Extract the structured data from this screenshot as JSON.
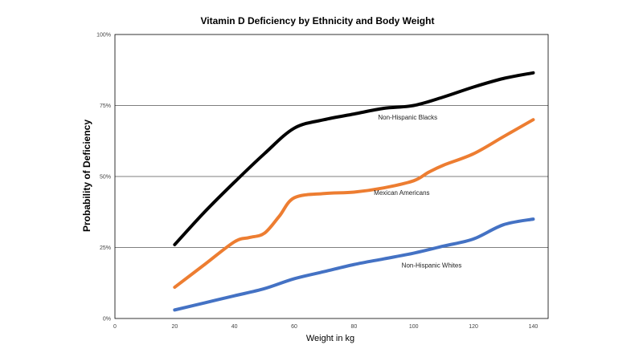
{
  "chart_data": {
    "type": "line",
    "title": "Vitamin D Deficiency by Ethnicity and Body Weight",
    "xlabel": "Weight  in kg",
    "ylabel": "Probability of Deficiency",
    "xlim": [
      0,
      145
    ],
    "ylim": [
      0,
      100
    ],
    "x_ticks": [
      0,
      20,
      40,
      60,
      80,
      100,
      120,
      140
    ],
    "y_ticks": [
      0,
      25,
      50,
      75,
      100
    ],
    "x_tick_labels": [
      "0",
      "20",
      "40",
      "60",
      "80",
      "100",
      "120",
      "140"
    ],
    "y_tick_labels": [
      "0%",
      "25%",
      "50%",
      "75%",
      "100%"
    ],
    "grid": "horizontal",
    "series": [
      {
        "name": "Non-Hispanic Blacks",
        "color": "#000000",
        "x": [
          20,
          30,
          40,
          50,
          60,
          70,
          80,
          90,
          100,
          110,
          120,
          130,
          140
        ],
        "y": [
          26,
          37.5,
          48,
          58,
          67,
          70,
          72,
          74,
          75,
          78,
          81.5,
          84.5,
          86.5
        ]
      },
      {
        "name": "Mexican Americans",
        "color": "#ED7D31",
        "x": [
          20,
          30,
          40,
          45,
          50,
          55,
          60,
          70,
          80,
          90,
          100,
          105,
          110,
          120,
          130,
          140
        ],
        "y": [
          11,
          19,
          27,
          28.5,
          30,
          36,
          42.5,
          44,
          44.5,
          46,
          48.5,
          51.5,
          54,
          58,
          64,
          70
        ]
      },
      {
        "name": "Non-Hispanic Whites",
        "color": "#4472C4",
        "x": [
          20,
          30,
          40,
          50,
          60,
          70,
          80,
          90,
          100,
          110,
          120,
          130,
          140
        ],
        "y": [
          3,
          5.5,
          8,
          10.5,
          14,
          16.5,
          19,
          21,
          23,
          25.5,
          28,
          33,
          35
        ]
      }
    ],
    "annotations": [
      {
        "text": "Non-Hispanic Blacks",
        "x": 98,
        "y": 70
      },
      {
        "text": "Mexican Americans",
        "x": 96,
        "y": 43.5
      },
      {
        "text": "Non-Hispanic Whites",
        "x": 106,
        "y": 18
      }
    ]
  }
}
